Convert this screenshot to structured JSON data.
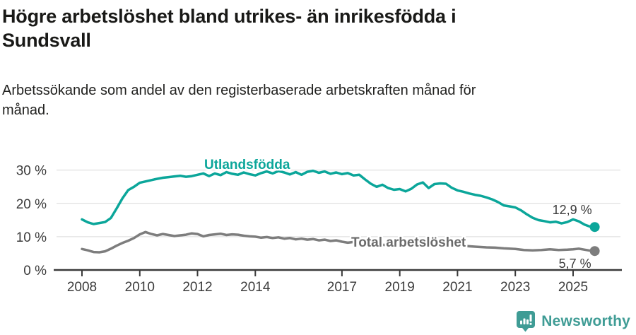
{
  "header": {
    "title": "Högre arbetslöshet bland utrikes- än inrikesfödda i\nSundsvall",
    "subtitle": "Arbetssökande som andel av den registerbaserade arbetskraften månad för\nmånad."
  },
  "footer": {
    "brand": "Newsworthy",
    "brand_color": "#3f9c95",
    "logo_icon": "speech-bubble-with-bar-chart-and-exclamation"
  },
  "chart_data": {
    "type": "line",
    "title": "Högre arbetslöshet bland utrikes- än inrikesfödda i Sundsvall",
    "subtitle": "Arbetssökande som andel av den registerbaserade arbetskraften månad för månad.",
    "grid": true,
    "legend_position": "inline-labels",
    "x_axis": {
      "ticks": [
        2008,
        2010,
        2012,
        2014,
        2017,
        2019,
        2021,
        2023,
        2025
      ],
      "range": [
        2007.0,
        2026.7
      ]
    },
    "y_axis": {
      "ticks": [
        0,
        10,
        20,
        30
      ],
      "tick_suffix": " %",
      "range": [
        0,
        33
      ]
    },
    "series": [
      {
        "id": "utlandsfodda",
        "name": "Utlandsfödda",
        "color": "#0ba69a",
        "label_color": "#0ba69a",
        "end_label": "12,9 %",
        "end_value": 12.9,
        "points": [
          [
            2008.0,
            15.2
          ],
          [
            2008.2,
            14.3
          ],
          [
            2008.4,
            13.8
          ],
          [
            2008.6,
            14.1
          ],
          [
            2008.8,
            14.4
          ],
          [
            2009.0,
            15.6
          ],
          [
            2009.2,
            18.5
          ],
          [
            2009.4,
            21.5
          ],
          [
            2009.6,
            24.0
          ],
          [
            2009.8,
            25.0
          ],
          [
            2010.0,
            26.2
          ],
          [
            2010.3,
            26.8
          ],
          [
            2010.5,
            27.2
          ],
          [
            2010.8,
            27.7
          ],
          [
            2011.0,
            27.9
          ],
          [
            2011.2,
            28.1
          ],
          [
            2011.4,
            28.3
          ],
          [
            2011.6,
            28.0
          ],
          [
            2011.8,
            28.2
          ],
          [
            2012.0,
            28.6
          ],
          [
            2012.2,
            29.0
          ],
          [
            2012.4,
            28.2
          ],
          [
            2012.6,
            29.0
          ],
          [
            2012.8,
            28.5
          ],
          [
            2013.0,
            29.4
          ],
          [
            2013.2,
            28.9
          ],
          [
            2013.4,
            28.6
          ],
          [
            2013.6,
            29.3
          ],
          [
            2013.8,
            28.8
          ],
          [
            2014.0,
            28.4
          ],
          [
            2014.2,
            29.1
          ],
          [
            2014.4,
            29.6
          ],
          [
            2014.6,
            29.0
          ],
          [
            2014.8,
            29.7
          ],
          [
            2015.0,
            29.3
          ],
          [
            2015.2,
            28.7
          ],
          [
            2015.4,
            29.4
          ],
          [
            2015.6,
            28.6
          ],
          [
            2015.8,
            29.5
          ],
          [
            2016.0,
            29.8
          ],
          [
            2016.2,
            29.2
          ],
          [
            2016.4,
            29.6
          ],
          [
            2016.6,
            28.9
          ],
          [
            2016.8,
            29.3
          ],
          [
            2017.0,
            28.8
          ],
          [
            2017.2,
            29.1
          ],
          [
            2017.4,
            28.4
          ],
          [
            2017.6,
            28.6
          ],
          [
            2017.8,
            27.2
          ],
          [
            2018.0,
            25.9
          ],
          [
            2018.2,
            25.0
          ],
          [
            2018.4,
            25.6
          ],
          [
            2018.6,
            24.6
          ],
          [
            2018.8,
            24.1
          ],
          [
            2019.0,
            24.3
          ],
          [
            2019.2,
            23.6
          ],
          [
            2019.4,
            24.4
          ],
          [
            2019.6,
            25.7
          ],
          [
            2019.8,
            26.3
          ],
          [
            2020.0,
            24.6
          ],
          [
            2020.2,
            25.8
          ],
          [
            2020.4,
            26.0
          ],
          [
            2020.6,
            25.9
          ],
          [
            2020.8,
            24.7
          ],
          [
            2021.0,
            23.9
          ],
          [
            2021.2,
            23.5
          ],
          [
            2021.4,
            23.0
          ],
          [
            2021.6,
            22.6
          ],
          [
            2021.8,
            22.3
          ],
          [
            2022.0,
            21.8
          ],
          [
            2022.2,
            21.2
          ],
          [
            2022.4,
            20.4
          ],
          [
            2022.6,
            19.4
          ],
          [
            2022.8,
            19.1
          ],
          [
            2023.0,
            18.8
          ],
          [
            2023.2,
            17.9
          ],
          [
            2023.4,
            16.7
          ],
          [
            2023.6,
            15.7
          ],
          [
            2023.8,
            15.0
          ],
          [
            2024.0,
            14.7
          ],
          [
            2024.2,
            14.3
          ],
          [
            2024.4,
            14.5
          ],
          [
            2024.6,
            14.0
          ],
          [
            2024.8,
            14.4
          ],
          [
            2025.0,
            15.2
          ],
          [
            2025.2,
            14.6
          ],
          [
            2025.4,
            13.6
          ],
          [
            2025.6,
            13.0
          ],
          [
            2025.75,
            12.9
          ]
        ]
      },
      {
        "id": "total",
        "name": "Total arbetslöshet",
        "color": "#7d7d7d",
        "label_color": "#6b6b6b",
        "end_label": "5,7 %",
        "end_value": 5.7,
        "points": [
          [
            2008.0,
            6.3
          ],
          [
            2008.2,
            5.9
          ],
          [
            2008.4,
            5.4
          ],
          [
            2008.6,
            5.3
          ],
          [
            2008.8,
            5.6
          ],
          [
            2009.0,
            6.4
          ],
          [
            2009.2,
            7.3
          ],
          [
            2009.4,
            8.1
          ],
          [
            2009.6,
            8.8
          ],
          [
            2009.8,
            9.6
          ],
          [
            2010.0,
            10.7
          ],
          [
            2010.2,
            11.4
          ],
          [
            2010.4,
            10.8
          ],
          [
            2010.6,
            10.4
          ],
          [
            2010.8,
            10.8
          ],
          [
            2011.0,
            10.5
          ],
          [
            2011.2,
            10.2
          ],
          [
            2011.4,
            10.4
          ],
          [
            2011.6,
            10.6
          ],
          [
            2011.8,
            11.0
          ],
          [
            2012.0,
            10.8
          ],
          [
            2012.2,
            10.1
          ],
          [
            2012.4,
            10.5
          ],
          [
            2012.6,
            10.7
          ],
          [
            2012.8,
            10.9
          ],
          [
            2013.0,
            10.5
          ],
          [
            2013.2,
            10.7
          ],
          [
            2013.4,
            10.6
          ],
          [
            2013.6,
            10.3
          ],
          [
            2013.8,
            10.1
          ],
          [
            2014.0,
            10.0
          ],
          [
            2014.2,
            9.7
          ],
          [
            2014.4,
            9.9
          ],
          [
            2014.6,
            9.6
          ],
          [
            2014.8,
            9.8
          ],
          [
            2015.0,
            9.4
          ],
          [
            2015.2,
            9.6
          ],
          [
            2015.4,
            9.2
          ],
          [
            2015.6,
            9.4
          ],
          [
            2015.8,
            9.1
          ],
          [
            2016.0,
            9.3
          ],
          [
            2016.2,
            8.9
          ],
          [
            2016.4,
            9.1
          ],
          [
            2016.6,
            8.7
          ],
          [
            2016.8,
            8.9
          ],
          [
            2017.0,
            8.5
          ],
          [
            2017.2,
            8.2
          ],
          [
            2017.4,
            8.4
          ],
          [
            2017.6,
            8.1
          ],
          [
            2017.8,
            7.9
          ],
          [
            2018.0,
            7.8
          ],
          [
            2018.3,
            7.6
          ],
          [
            2018.6,
            7.5
          ],
          [
            2019.0,
            7.3
          ],
          [
            2019.3,
            7.6
          ],
          [
            2019.6,
            7.4
          ],
          [
            2020.0,
            7.6
          ],
          [
            2020.3,
            7.9
          ],
          [
            2020.6,
            7.7
          ],
          [
            2021.0,
            7.4
          ],
          [
            2021.3,
            7.2
          ],
          [
            2021.6,
            7.0
          ],
          [
            2022.0,
            6.8
          ],
          [
            2022.3,
            6.7
          ],
          [
            2022.6,
            6.5
          ],
          [
            2023.0,
            6.3
          ],
          [
            2023.3,
            6.0
          ],
          [
            2023.6,
            5.9
          ],
          [
            2023.9,
            6.0
          ],
          [
            2024.2,
            6.2
          ],
          [
            2024.5,
            6.0
          ],
          [
            2024.8,
            6.1
          ],
          [
            2025.0,
            6.2
          ],
          [
            2025.2,
            6.4
          ],
          [
            2025.4,
            6.1
          ],
          [
            2025.6,
            5.8
          ],
          [
            2025.75,
            5.7
          ]
        ]
      }
    ]
  }
}
